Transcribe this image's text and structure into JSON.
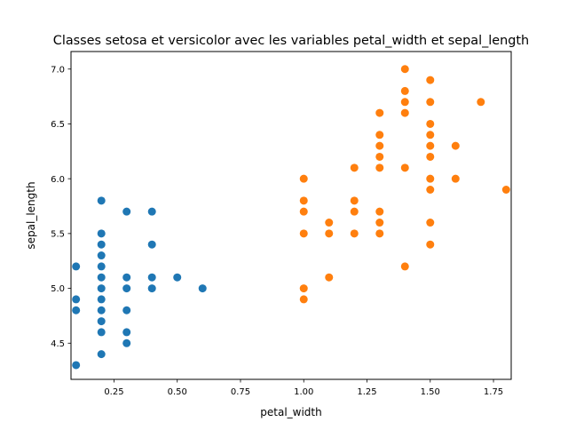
{
  "chart_data": {
    "type": "scatter",
    "title": "Classes setosa et versicolor avec les variables petal_width et sepal_length",
    "xlabel": "petal_width",
    "ylabel": "sepal_length",
    "xlim": [
      0.08,
      1.82
    ],
    "ylim": [
      4.17,
      7.16
    ],
    "xticks": [
      0.25,
      0.5,
      0.75,
      1.0,
      1.25,
      1.5,
      1.75
    ],
    "xtick_labels": [
      "0.25",
      "0.50",
      "0.75",
      "1.00",
      "1.25",
      "1.50",
      "1.75"
    ],
    "yticks": [
      4.5,
      5.0,
      5.5,
      6.0,
      6.5,
      7.0
    ],
    "ytick_labels": [
      "4.5",
      "5.0",
      "5.5",
      "6.0",
      "6.5",
      "7.0"
    ],
    "grid": false,
    "legend": "none",
    "series": [
      {
        "color": "#1f77b4",
        "points": [
          [
            0.1,
            5.2
          ],
          [
            0.1,
            4.9
          ],
          [
            0.1,
            4.8
          ],
          [
            0.1,
            4.3
          ],
          [
            0.2,
            5.8
          ],
          [
            0.2,
            5.5
          ],
          [
            0.2,
            5.4
          ],
          [
            0.2,
            5.3
          ],
          [
            0.2,
            5.2
          ],
          [
            0.2,
            5.1
          ],
          [
            0.2,
            5.0
          ],
          [
            0.2,
            4.9
          ],
          [
            0.2,
            4.8
          ],
          [
            0.2,
            4.7
          ],
          [
            0.2,
            4.6
          ],
          [
            0.2,
            4.4
          ],
          [
            0.3,
            5.7
          ],
          [
            0.3,
            5.1
          ],
          [
            0.3,
            5.0
          ],
          [
            0.3,
            4.8
          ],
          [
            0.3,
            4.6
          ],
          [
            0.3,
            4.5
          ],
          [
            0.4,
            5.7
          ],
          [
            0.4,
            5.4
          ],
          [
            0.4,
            5.1
          ],
          [
            0.4,
            5.0
          ],
          [
            0.5,
            5.1
          ],
          [
            0.6,
            5.0
          ]
        ]
      },
      {
        "color": "#ff7f0e",
        "points": [
          [
            1.0,
            6.0
          ],
          [
            1.0,
            5.8
          ],
          [
            1.0,
            5.7
          ],
          [
            1.0,
            5.5
          ],
          [
            1.0,
            5.0
          ],
          [
            1.0,
            4.9
          ],
          [
            1.1,
            5.6
          ],
          [
            1.1,
            5.5
          ],
          [
            1.1,
            5.1
          ],
          [
            1.2,
            6.1
          ],
          [
            1.2,
            5.8
          ],
          [
            1.2,
            5.7
          ],
          [
            1.2,
            5.5
          ],
          [
            1.3,
            6.6
          ],
          [
            1.3,
            6.4
          ],
          [
            1.3,
            6.3
          ],
          [
            1.3,
            6.2
          ],
          [
            1.3,
            6.1
          ],
          [
            1.3,
            5.7
          ],
          [
            1.3,
            5.6
          ],
          [
            1.3,
            5.5
          ],
          [
            1.4,
            7.0
          ],
          [
            1.4,
            6.8
          ],
          [
            1.4,
            6.7
          ],
          [
            1.4,
            6.6
          ],
          [
            1.4,
            6.1
          ],
          [
            1.4,
            5.2
          ],
          [
            1.5,
            6.9
          ],
          [
            1.5,
            6.7
          ],
          [
            1.5,
            6.5
          ],
          [
            1.5,
            6.4
          ],
          [
            1.5,
            6.3
          ],
          [
            1.5,
            6.2
          ],
          [
            1.5,
            6.0
          ],
          [
            1.5,
            5.9
          ],
          [
            1.5,
            5.6
          ],
          [
            1.5,
            5.4
          ],
          [
            1.6,
            6.3
          ],
          [
            1.6,
            6.0
          ],
          [
            1.7,
            6.7
          ],
          [
            1.8,
            5.9
          ]
        ]
      }
    ]
  }
}
